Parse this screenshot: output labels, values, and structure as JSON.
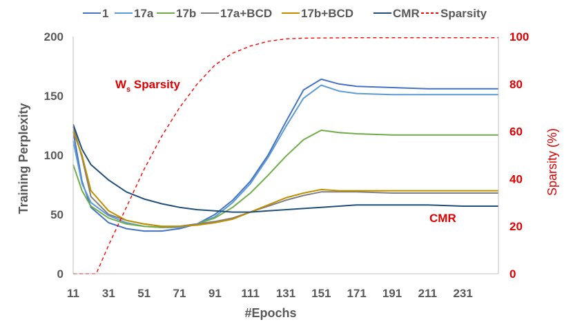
{
  "chart_data": {
    "type": "line",
    "title": "",
    "xlabel": "#Epochs",
    "ylabel": "Training Perplexity",
    "y2label": "Sparsity (%)",
    "xlim": [
      11,
      251
    ],
    "ylim": [
      0,
      200
    ],
    "y2lim": [
      0,
      100
    ],
    "xticks": [
      11,
      31,
      51,
      71,
      91,
      111,
      131,
      151,
      171,
      191,
      211,
      231
    ],
    "yticks": [
      0,
      50,
      100,
      150,
      200
    ],
    "y2ticks": [
      0,
      20,
      40,
      60,
      80,
      100
    ],
    "grid": false,
    "legend_position": "top",
    "annotations": [
      {
        "text_main": "W",
        "text_sub": "s",
        "text_rest": " Sparsity"
      },
      {
        "text_main": "CMR",
        "text_sub": "",
        "text_rest": ""
      }
    ],
    "series": [
      {
        "name": "1",
        "color": "#4472c4",
        "axis": "left",
        "dash": "",
        "x": [
          11,
          16,
          21,
          31,
          41,
          51,
          61,
          71,
          81,
          91,
          101,
          111,
          121,
          131,
          141,
          151,
          161,
          171,
          191,
          211,
          231,
          251
        ],
        "y": [
          120,
          78,
          56,
          43,
          38,
          36,
          36,
          38,
          42,
          50,
          62,
          78,
          100,
          128,
          155,
          164,
          160,
          158,
          157,
          156,
          156,
          156
        ]
      },
      {
        "name": "17a",
        "color": "#5b9bd5",
        "axis": "left",
        "dash": "",
        "x": [
          11,
          16,
          21,
          31,
          41,
          51,
          61,
          71,
          81,
          91,
          101,
          111,
          121,
          131,
          141,
          151,
          161,
          171,
          191,
          211,
          231,
          251
        ],
        "y": [
          112,
          76,
          60,
          49,
          43,
          40,
          39,
          39,
          42,
          48,
          60,
          76,
          98,
          124,
          148,
          159,
          154,
          152,
          151,
          151,
          151,
          151
        ]
      },
      {
        "name": "17b",
        "color": "#70ad47",
        "axis": "left",
        "dash": "",
        "x": [
          11,
          16,
          21,
          31,
          41,
          51,
          61,
          71,
          81,
          91,
          101,
          111,
          121,
          131,
          141,
          151,
          161,
          171,
          191,
          211,
          231,
          251
        ],
        "y": [
          92,
          70,
          57,
          47,
          42,
          40,
          39,
          40,
          42,
          47,
          56,
          68,
          83,
          99,
          113,
          121,
          119,
          118,
          117,
          117,
          117,
          117
        ]
      },
      {
        "name": "17a+BCD",
        "color": "#7f7f7f",
        "axis": "left",
        "dash": "",
        "x": [
          11,
          16,
          21,
          31,
          41,
          51,
          61,
          71,
          81,
          91,
          101,
          111,
          121,
          131,
          141,
          151,
          161,
          171,
          191,
          211,
          231,
          251
        ],
        "y": [
          124,
          98,
          65,
          50,
          45,
          42,
          40,
          40,
          42,
          44,
          47,
          52,
          57,
          62,
          66,
          69,
          69,
          69,
          68,
          68,
          68,
          68
        ]
      },
      {
        "name": "17b+BCD",
        "color": "#bf8f00",
        "axis": "left",
        "dash": "",
        "x": [
          11,
          16,
          21,
          31,
          41,
          51,
          61,
          71,
          81,
          91,
          101,
          111,
          121,
          131,
          141,
          151,
          161,
          171,
          191,
          211,
          231,
          251
        ],
        "y": [
          120,
          100,
          70,
          53,
          45,
          42,
          40,
          40,
          41,
          43,
          46,
          52,
          58,
          64,
          68,
          71,
          70,
          70,
          70,
          70,
          70,
          70
        ]
      },
      {
        "name": "CMR",
        "color": "#1f4e79",
        "axis": "left",
        "dash": "",
        "x": [
          11,
          16,
          21,
          31,
          41,
          51,
          61,
          71,
          81,
          91,
          101,
          111,
          121,
          131,
          141,
          151,
          161,
          171,
          191,
          211,
          231,
          251
        ],
        "y": [
          126,
          105,
          92,
          79,
          69,
          63,
          59,
          56,
          54,
          53,
          52,
          52,
          53,
          54,
          55,
          56,
          57,
          58,
          58,
          58,
          57,
          57
        ]
      },
      {
        "name": "Sparsity",
        "color": "#ff0000",
        "axis": "right",
        "dash": "5,4",
        "x": [
          11,
          16,
          21,
          24,
          31,
          41,
          51,
          61,
          71,
          81,
          91,
          101,
          111,
          121,
          131,
          141,
          151,
          171,
          191,
          211,
          231,
          251
        ],
        "y": [
          0,
          0,
          0,
          0,
          12,
          28,
          44,
          58,
          70,
          80,
          88,
          93,
          96,
          98,
          99,
          99.3,
          99.4,
          99.5,
          99.5,
          99.5,
          99.5,
          99.5
        ]
      }
    ]
  }
}
